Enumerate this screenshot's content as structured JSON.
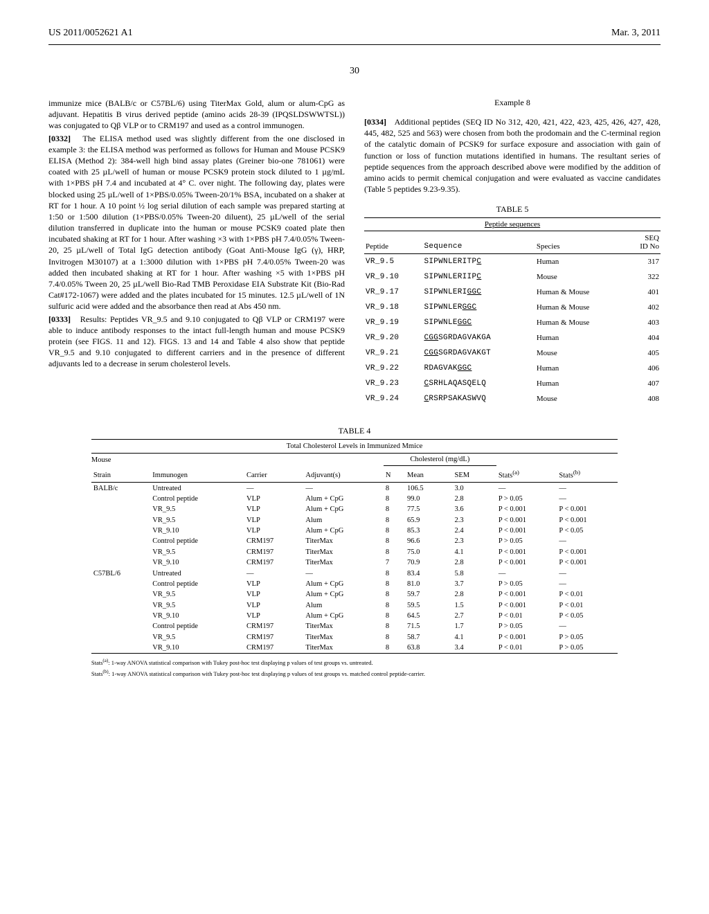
{
  "header": {
    "left": "US 2011/0052621 A1",
    "right": "Mar. 3, 2011",
    "page_number": "30"
  },
  "left_column": {
    "para_intro": "immunize mice (BALB/c or C57BL/6) using TiterMax Gold, alum or alum-CpG as adjuvant. Hepatitis B virus derived peptide (amino acids 28-39 (IPQSLDSWWTSL)) was conjugated to Qβ VLP or to CRM197 and used as a control immunogen.",
    "para_0332_num": "[0332]",
    "para_0332": "The ELISA method used was slightly different from the one disclosed in example 3: the ELISA method was performed as follows for Human and Mouse PCSK9 ELISA (Method 2): 384-well high bind assay plates (Greiner bio-one 781061) were coated with 25 µL/well of human or mouse PCSK9 protein stock diluted to 1 µg/mL with 1×PBS pH 7.4 and incubated at 4° C. over night. The following day, plates were blocked using 25 µL/well of 1×PBS/0.05% Tween-20/1% BSA, incubated on a shaker at RT for 1 hour. A 10 point ½ log serial dilution of each sample was prepared starting at 1:50 or 1:500 dilution (1×PBS/0.05% Tween-20 diluent), 25 µL/well of the serial dilution transferred in duplicate into the human or mouse PCSK9 coated plate then incubated shaking at RT for 1 hour. After washing ×3 with 1×PBS pH 7.4/0.05% Tween-20, 25 µL/well of Total IgG detection antibody (Goat Anti-Mouse IgG (γ), HRP, Invitrogen M30107) at a 1:3000 dilution with 1×PBS pH 7.4/0.05% Tween-20 was added then incubated shaking at RT for 1 hour. After washing ×5 with 1×PBS pH 7.4/0.05% Tween 20, 25 µL/well Bio-Rad TMB Peroxidase EIA Substrate Kit (Bio-Rad Cat#172-1067) were added and the plates incubated for 15 minutes. 12.5 µL/well of 1N sulfuric acid were added and the absorbance then read at Abs 450 nm.",
    "para_0333_num": "[0333]",
    "para_0333": "Results: Peptides VR_9.5 and 9.10 conjugated to Qβ VLP or CRM197 were able to induce antibody responses to the intact full-length human and mouse PCSK9 protein (see FIGS. 11 and 12). FIGS. 13 and 14 and Table 4 also show that peptide VR_9.5 and 9.10 conjugated to different carriers and in the presence of different adjuvants led to a decrease in serum cholesterol levels."
  },
  "right_column": {
    "example_heading": "Example 8",
    "para_0334_num": "[0334]",
    "para_0334": "Additional peptides (SEQ ID No 312, 420, 421, 422, 423, 425, 426, 427, 428, 445, 482, 525 and 563) were chosen from both the prodomain and the C-terminal region of the catalytic domain of PCSK9 for surface exposure and association with gain of function or loss of function mutations identified in humans. The resultant series of peptide sequences from the approach described above were modified by the addition of amino acids to permit chemical conjugation and were evaluated as vaccine candidates (Table 5 peptides 9.23-9.35)."
  },
  "table5": {
    "caption": "TABLE 5",
    "title": "Peptide sequences",
    "headers": [
      "Peptide",
      "Sequence",
      "Species",
      "SEQ\nID No"
    ],
    "rows": [
      {
        "peptide": "VR_9.5",
        "seq": "SIPWNLERITPC",
        "underline_from": 11,
        "species": "Human",
        "id": "317"
      },
      {
        "peptide": "VR_9.10",
        "seq": "SIPWNLERIIPC",
        "underline_from": 11,
        "species": "Mouse",
        "id": "322"
      },
      {
        "peptide": "VR_9.17",
        "seq": "SIPWNLERIGGC",
        "underline_from": 9,
        "species": "Human & Mouse",
        "id": "401"
      },
      {
        "peptide": "VR_9.18",
        "seq": "SIPWNLERGGC",
        "underline_from": 8,
        "species": "Human & Mouse",
        "id": "402"
      },
      {
        "peptide": "VR_9.19",
        "seq": "SIPWNLEGGC",
        "underline_from": 7,
        "species": "Human & Mouse",
        "id": "403"
      },
      {
        "peptide": "VR_9.20",
        "seq": "CGGSGRDAGVAKGA",
        "underline_from": 0,
        "underline_to": 3,
        "species": "Human",
        "id": "404"
      },
      {
        "peptide": "VR_9.21",
        "seq": "CGGSGRDAGVAKGT",
        "underline_from": 0,
        "underline_to": 3,
        "species": "Mouse",
        "id": "405"
      },
      {
        "peptide": "VR_9.22",
        "seq": "RDAGVAKGGC",
        "underline_from": 7,
        "species": "Human",
        "id": "406"
      },
      {
        "peptide": "VR_9.23",
        "seq": "CSRHLAQASQELQ",
        "underline_from": 0,
        "underline_to": 1,
        "species": "Human",
        "id": "407"
      },
      {
        "peptide": "VR_9.24",
        "seq": "CRSRPSAKASWVQ",
        "underline_from": 0,
        "underline_to": 1,
        "species": "Mouse",
        "id": "408"
      }
    ]
  },
  "table4": {
    "caption": "TABLE 4",
    "title": "Total Cholesterol Levels in Immunized Mmice",
    "group_left": "Mouse",
    "group_right": "Cholesterol (mg/dL)",
    "headers": [
      "Strain",
      "Immunogen",
      "Carrier",
      "Adjuvant(s)",
      "N",
      "Mean",
      "SEM",
      "Stats(a)",
      "Stats(b)"
    ],
    "rows": [
      {
        "strain": "BALB/c",
        "imm": "Untreated",
        "car": "—",
        "adj": "—",
        "n": "8",
        "mean": "106.5",
        "sem": "3.0",
        "sa": "—",
        "sb": "—"
      },
      {
        "strain": "",
        "imm": "Control peptide",
        "car": "VLP",
        "adj": "Alum + CpG",
        "n": "8",
        "mean": "99.0",
        "sem": "2.8",
        "sa": "P > 0.05",
        "sb": "—"
      },
      {
        "strain": "",
        "imm": "VR_9.5",
        "car": "VLP",
        "adj": "Alum + CpG",
        "n": "8",
        "mean": "77.5",
        "sem": "3.6",
        "sa": "P < 0.001",
        "sb": "P < 0.001"
      },
      {
        "strain": "",
        "imm": "VR_9.5",
        "car": "VLP",
        "adj": "Alum",
        "n": "8",
        "mean": "65.9",
        "sem": "2.3",
        "sa": "P < 0.001",
        "sb": "P < 0.001"
      },
      {
        "strain": "",
        "imm": "VR_9.10",
        "car": "VLP",
        "adj": "Alum + CpG",
        "n": "8",
        "mean": "85.3",
        "sem": "2.4",
        "sa": "P < 0.001",
        "sb": "P < 0.05"
      },
      {
        "strain": "",
        "imm": "Control peptide",
        "car": "CRM197",
        "adj": "TiterMax",
        "n": "8",
        "mean": "96.6",
        "sem": "2.3",
        "sa": "P > 0.05",
        "sb": "—"
      },
      {
        "strain": "",
        "imm": "VR_9.5",
        "car": "CRM197",
        "adj": "TiterMax",
        "n": "8",
        "mean": "75.0",
        "sem": "4.1",
        "sa": "P < 0.001",
        "sb": "P < 0.001"
      },
      {
        "strain": "",
        "imm": "VR_9.10",
        "car": "CRM197",
        "adj": "TiterMax",
        "n": "7",
        "mean": "70.9",
        "sem": "2.8",
        "sa": "P < 0.001",
        "sb": "P < 0.001"
      },
      {
        "strain": "C57BL/6",
        "imm": "Untreated",
        "car": "—",
        "adj": "—",
        "n": "8",
        "mean": "83.4",
        "sem": "5.8",
        "sa": "—",
        "sb": "—"
      },
      {
        "strain": "",
        "imm": "Control peptide",
        "car": "VLP",
        "adj": "Alum + CpG",
        "n": "8",
        "mean": "81.0",
        "sem": "3.7",
        "sa": "P > 0.05",
        "sb": "—"
      },
      {
        "strain": "",
        "imm": "VR_9.5",
        "car": "VLP",
        "adj": "Alum + CpG",
        "n": "8",
        "mean": "59.7",
        "sem": "2.8",
        "sa": "P < 0.001",
        "sb": "P < 0.01"
      },
      {
        "strain": "",
        "imm": "VR_9.5",
        "car": "VLP",
        "adj": "Alum",
        "n": "8",
        "mean": "59.5",
        "sem": "1.5",
        "sa": "P < 0.001",
        "sb": "P < 0.01"
      },
      {
        "strain": "",
        "imm": "VR_9.10",
        "car": "VLP",
        "adj": "Alum + CpG",
        "n": "8",
        "mean": "64.5",
        "sem": "2.7",
        "sa": "P < 0.01",
        "sb": "P < 0.05"
      },
      {
        "strain": "",
        "imm": "Control peptide",
        "car": "CRM197",
        "adj": "TiterMax",
        "n": "8",
        "mean": "71.5",
        "sem": "1.7",
        "sa": "P > 0.05",
        "sb": "—"
      },
      {
        "strain": "",
        "imm": "VR_9.5",
        "car": "CRM197",
        "adj": "TiterMax",
        "n": "8",
        "mean": "58.7",
        "sem": "4.1",
        "sa": "P < 0.001",
        "sb": "P > 0.05"
      },
      {
        "strain": "",
        "imm": "VR_9.10",
        "car": "CRM197",
        "adj": "TiterMax",
        "n": "8",
        "mean": "63.8",
        "sem": "3.4",
        "sa": "P < 0.01",
        "sb": "P > 0.05"
      }
    ],
    "footnote_a": "Stats(a): 1-way ANOVA statistical comparison with Tukey post-hoc test displaying p values of test groups vs. untreated.",
    "footnote_b": "Stats(b): 1-way ANOVA statistical comparison with Tukey post-hoc test displaying p values of test groups vs. matched control peptide-carrier."
  }
}
